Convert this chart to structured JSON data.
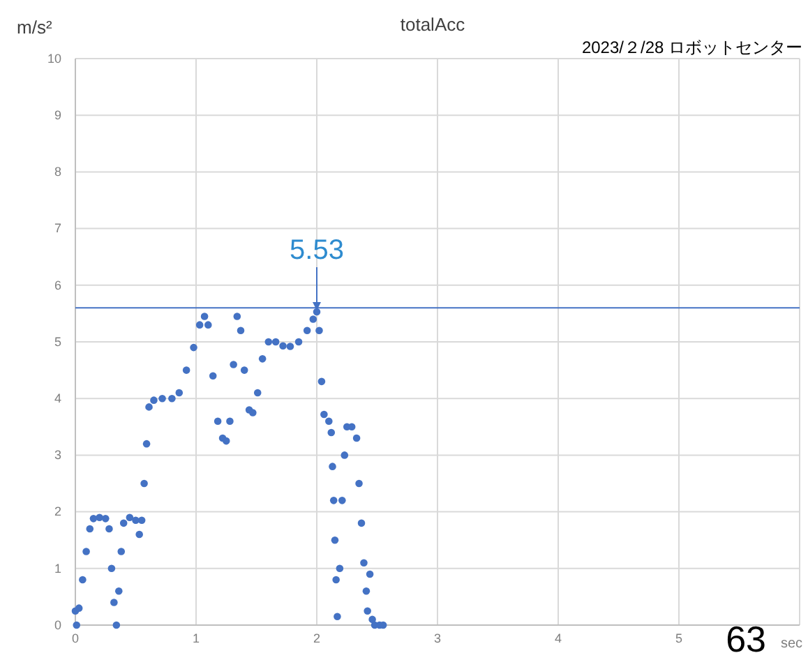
{
  "chart_data": {
    "type": "scatter",
    "title": "totalAcc",
    "subtitle": "2023/２/28 ロボットセンター",
    "xlabel": "sec",
    "ylabel": "m/s²",
    "xlim": [
      0,
      6
    ],
    "xticks": [
      0,
      1,
      2,
      3,
      4,
      5
    ],
    "ylim": [
      0,
      10
    ],
    "yticks": [
      0,
      1,
      2,
      3,
      4,
      5,
      6,
      7,
      8,
      9,
      10
    ],
    "grid": true,
    "marker": "circle",
    "series": [
      {
        "color": "#4472c4",
        "x": [
          0,
          0.01,
          0.03,
          0.06,
          0.09,
          0.12,
          0.15,
          0.2,
          0.25,
          0.28,
          0.3,
          0.32,
          0.34,
          0.36,
          0.38,
          0.4,
          0.45,
          0.5,
          0.53,
          0.55,
          0.57,
          0.59,
          0.61,
          0.65,
          0.72,
          0.8,
          0.86,
          0.92,
          0.98,
          1.03,
          1.07,
          1.1,
          1.14,
          1.18,
          1.22,
          1.25,
          1.28,
          1.31,
          1.34,
          1.37,
          1.4,
          1.44,
          1.47,
          1.51,
          1.55,
          1.6,
          1.66,
          1.72,
          1.78,
          1.85,
          1.92,
          1.97,
          2.0,
          2.02,
          2.04,
          2.06,
          2.1,
          2.12,
          2.13,
          2.14,
          2.15,
          2.16,
          2.17,
          2.19,
          2.21,
          2.23,
          2.25,
          2.29,
          2.33,
          2.35,
          2.37,
          2.39,
          2.41,
          2.42,
          2.44,
          2.46,
          2.48,
          2.52,
          2.55
        ],
        "values": [
          0.25,
          0,
          0.3,
          0.8,
          1.3,
          1.7,
          1.88,
          1.9,
          1.88,
          1.7,
          1.0,
          0.4,
          0,
          0.6,
          1.3,
          1.8,
          1.9,
          1.85,
          1.6,
          1.85,
          2.5,
          3.2,
          3.85,
          3.97,
          4.0,
          4.0,
          4.1,
          4.5,
          4.9,
          5.3,
          5.45,
          5.3,
          4.4,
          3.6,
          3.3,
          3.25,
          3.6,
          4.6,
          5.45,
          5.2,
          4.5,
          3.8,
          3.75,
          4.1,
          4.7,
          5.0,
          5.0,
          4.93,
          4.92,
          5.0,
          5.2,
          5.4,
          5.53,
          5.2,
          4.3,
          3.72,
          3.6,
          3.4,
          2.8,
          2.2,
          1.5,
          0.8,
          0.15,
          1.0,
          2.2,
          3.0,
          3.5,
          3.5,
          3.3,
          2.5,
          1.8,
          1.1,
          0.6,
          0.25,
          0.9,
          0.1,
          0,
          0,
          0
        ]
      }
    ],
    "ref_lines": [
      {
        "axis": "y",
        "value": 5.6,
        "color": "#4472c4"
      }
    ],
    "annotations": [
      {
        "text": "5.53",
        "x": 2.0,
        "y": 5.53
      },
      "63"
    ]
  }
}
